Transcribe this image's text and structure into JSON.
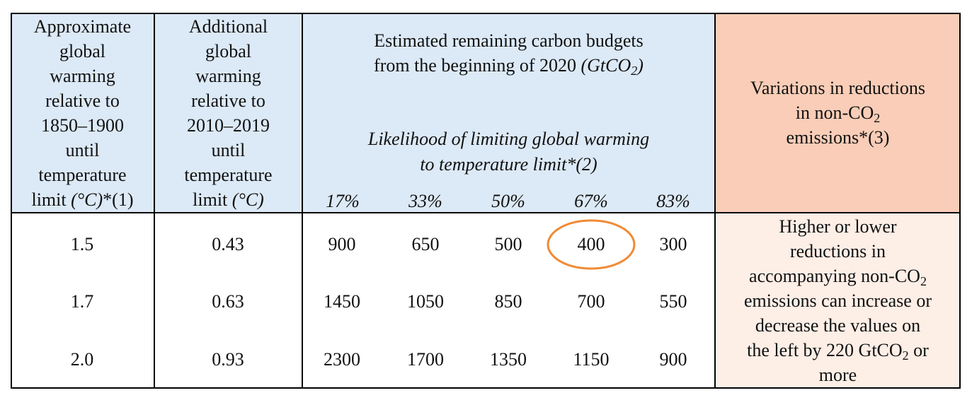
{
  "header": {
    "col1": {
      "lines": [
        "Approximate",
        "global",
        "warming",
        "relative to",
        "1850–1900",
        "until",
        "temperature"
      ],
      "last_prefix": "limit ",
      "last_unit": "(°C)",
      "last_suffix": "*(1)"
    },
    "col2": {
      "lines": [
        "Additional",
        "global",
        "warming",
        "relative to",
        "2010–2019",
        "until",
        "temperature"
      ],
      "last_prefix": "limit ",
      "last_unit": "(°C)"
    },
    "budget": {
      "title_line1": "Estimated remaining carbon budgets",
      "title_line2": "from the beginning of 2020 ",
      "title_unit_pre": "(GtCO",
      "title_unit_sub": "2",
      "title_unit_post": ")",
      "likelihood_line1": "Likelihood of limiting global warming",
      "likelihood_line2": "to temperature limit*(2)",
      "percentages": [
        "17%",
        "33%",
        "50%",
        "67%",
        "83%"
      ]
    },
    "variations": {
      "line1": "Variations in reductions",
      "line2_pre": "in non-CO",
      "line2_sub": "2",
      "line3": "emissions*(3)"
    }
  },
  "rows": [
    {
      "warming": "1.5",
      "additional": "0.43",
      "budgets": [
        "900",
        "650",
        "500",
        "400",
        "300"
      ]
    },
    {
      "warming": "1.7",
      "additional": "0.63",
      "budgets": [
        "1450",
        "1050",
        "850",
        "700",
        "550"
      ]
    },
    {
      "warming": "2.0",
      "additional": "0.93",
      "budgets": [
        "2300",
        "1700",
        "1350",
        "1150",
        "900"
      ]
    }
  ],
  "note": {
    "line1": "Higher or lower",
    "line2": "reductions in",
    "line3_pre": "accompanying non-CO",
    "line3_sub": "2",
    "line4": "emissions can increase or",
    "line5": "decrease the values on",
    "line6_pre": "the left by 220 GtCO",
    "line6_sub": "2",
    "line6_post": " or",
    "line7": "more"
  },
  "highlight_color": "#f08a35",
  "header_blue": "#dce9f6",
  "header_peach": "#f9cdb7",
  "note_peach": "#fdeee6"
}
